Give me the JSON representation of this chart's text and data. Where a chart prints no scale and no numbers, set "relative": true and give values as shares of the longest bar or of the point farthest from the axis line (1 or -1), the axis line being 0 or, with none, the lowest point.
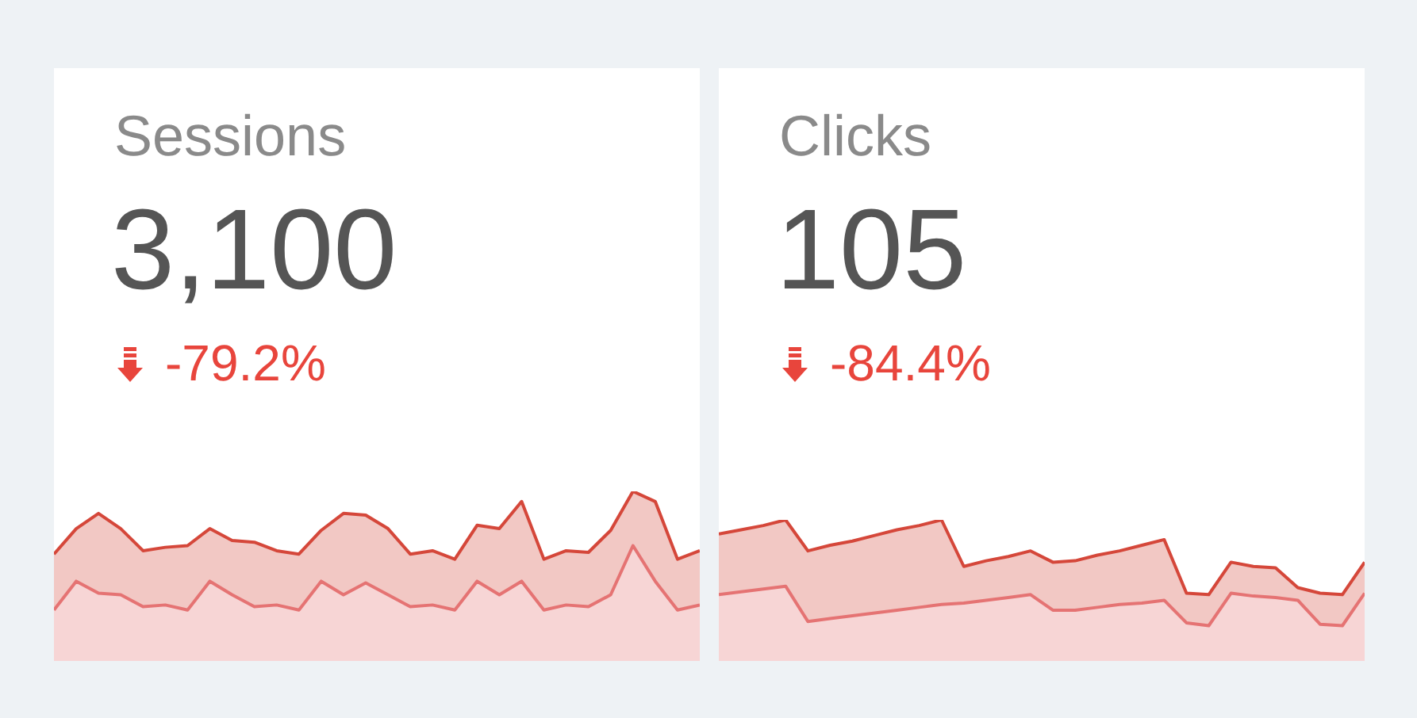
{
  "chart_data": [
    {
      "type": "area",
      "title": "Sessions",
      "annotations": [
        "3,100",
        "-79.2%"
      ],
      "relative": true,
      "categories": [
        null,
        null,
        null,
        null,
        null,
        null,
        null,
        null,
        null,
        null,
        null,
        null,
        null,
        null,
        null,
        null,
        null,
        null,
        null,
        null,
        null,
        null,
        null,
        null,
        null,
        null,
        null,
        null,
        null,
        null
      ],
      "series": [
        {
          "color": "#d5473a",
          "values": [
            0.63,
            0.78,
            0.87,
            0.78,
            0.65,
            0.67,
            0.68,
            0.78,
            0.71,
            0.7,
            0.65,
            0.63,
            0.77,
            0.87,
            0.86,
            0.78,
            0.63,
            0.65,
            0.6,
            0.8,
            0.78,
            0.94,
            0.6,
            0.65,
            0.64,
            0.77,
            1,
            0.94,
            0.6,
            0.65
          ]
        },
        {
          "color": "#e57373",
          "values": [
            0.3,
            0.47,
            0.4,
            0.39,
            0.32,
            0.33,
            0.3,
            0.47,
            0.39,
            0.32,
            0.33,
            0.3,
            0.47,
            0.39,
            0.46,
            0.39,
            0.32,
            0.33,
            0.3,
            0.47,
            0.39,
            0.47,
            0.3,
            0.33,
            0.32,
            0.39,
            0.68,
            0.47,
            0.3,
            0.33
          ]
        }
      ]
    },
    {
      "type": "area",
      "title": "Clicks",
      "annotations": [
        "105",
        "-84.4%"
      ],
      "relative": true,
      "categories": [
        null,
        null,
        null,
        null,
        null,
        null,
        null,
        null,
        null,
        null,
        null,
        null,
        null,
        null,
        null,
        null,
        null,
        null,
        null,
        null,
        null,
        null,
        null,
        null,
        null,
        null,
        null,
        null,
        null,
        null
      ],
      "series": [
        {
          "color": "#d5473a",
          "values": [
            0.9,
            0.93,
            0.96,
            1,
            0.78,
            0.82,
            0.85,
            0.89,
            0.93,
            0.96,
            1,
            0.67,
            0.71,
            0.74,
            0.78,
            0.7,
            0.71,
            0.75,
            0.78,
            0.82,
            0.86,
            0.48,
            0.47,
            0.7,
            0.67,
            0.66,
            0.52,
            0.48,
            0.47,
            0.7
          ]
        },
        {
          "color": "#e57373",
          "values": [
            0.47,
            0.49,
            0.51,
            0.53,
            0.28,
            0.3,
            0.32,
            0.34,
            0.36,
            0.38,
            0.4,
            0.41,
            0.43,
            0.45,
            0.47,
            0.36,
            0.36,
            0.38,
            0.4,
            0.41,
            0.43,
            0.27,
            0.25,
            0.48,
            0.46,
            0.45,
            0.43,
            0.26,
            0.25,
            0.48
          ]
        }
      ]
    }
  ]
}
